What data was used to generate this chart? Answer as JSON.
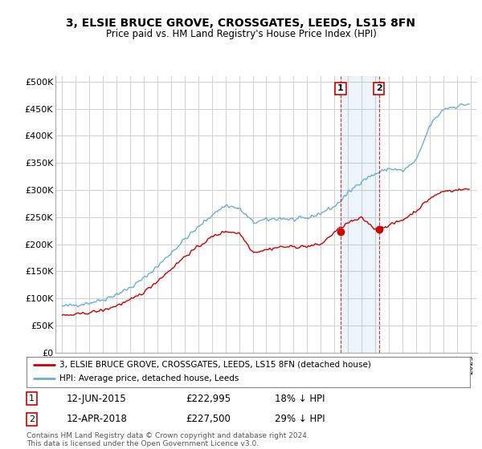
{
  "title": "3, ELSIE BRUCE GROVE, CROSSGATES, LEEDS, LS15 8FN",
  "subtitle": "Price paid vs. HM Land Registry's House Price Index (HPI)",
  "ylabel_ticks": [
    "£0",
    "£50K",
    "£100K",
    "£150K",
    "£200K",
    "£250K",
    "£300K",
    "£350K",
    "£400K",
    "£450K",
    "£500K"
  ],
  "ytick_values": [
    0,
    50000,
    100000,
    150000,
    200000,
    250000,
    300000,
    350000,
    400000,
    450000,
    500000
  ],
  "hpi_color": "#6baed6",
  "price_color": "#cc0000",
  "sale1_date": "12-JUN-2015",
  "sale1_price": 222995,
  "sale1_label": "18% ↓ HPI",
  "sale2_date": "12-APR-2018",
  "sale2_price": 227500,
  "sale2_label": "29% ↓ HPI",
  "legend_label1": "3, ELSIE BRUCE GROVE, CROSSGATES, LEEDS, LS15 8FN (detached house)",
  "legend_label2": "HPI: Average price, detached house, Leeds",
  "footnote": "Contains HM Land Registry data © Crown copyright and database right 2024.\nThis data is licensed under the Open Government Licence v3.0.",
  "bg_color": "#ffffff",
  "grid_color": "#d0d0d0",
  "hpi_key_years": [
    1995,
    1996,
    1997,
    1998,
    1999,
    2000,
    2001,
    2002,
    2003,
    2004,
    2005,
    2006,
    2007,
    2008,
    2009,
    2010,
    2011,
    2012,
    2013,
    2014,
    2015,
    2016,
    2017,
    2018,
    2019,
    2020,
    2021,
    2022,
    2023,
    2024,
    2025
  ],
  "hpi_key_vals": [
    85000,
    88000,
    92000,
    98000,
    108000,
    120000,
    138000,
    160000,
    185000,
    210000,
    232000,
    255000,
    272000,
    265000,
    240000,
    245000,
    248000,
    245000,
    248000,
    258000,
    270000,
    295000,
    318000,
    330000,
    340000,
    335000,
    355000,
    420000,
    450000,
    455000,
    460000
  ],
  "pp_key_years": [
    1995,
    1996,
    1997,
    1998,
    1999,
    2000,
    2001,
    2002,
    2003,
    2004,
    2005,
    2006,
    2007,
    2008,
    2009,
    2010,
    2011,
    2012,
    2013,
    2014,
    2015,
    2016,
    2017,
    2018,
    2019,
    2020,
    2021,
    2022,
    2023,
    2024,
    2025
  ],
  "pp_key_vals": [
    68000,
    70000,
    74000,
    78000,
    87000,
    97000,
    112000,
    133000,
    155000,
    178000,
    196000,
    214000,
    224000,
    220000,
    185000,
    190000,
    195000,
    195000,
    196000,
    200000,
    222995,
    240000,
    248000,
    227500,
    235000,
    245000,
    262000,
    285000,
    298000,
    300000,
    302000
  ],
  "sale1_x": 2015.46,
  "sale2_x": 2018.28,
  "xmin": 1994.5,
  "xmax": 2025.5,
  "ymin": 0,
  "ymax": 510000
}
